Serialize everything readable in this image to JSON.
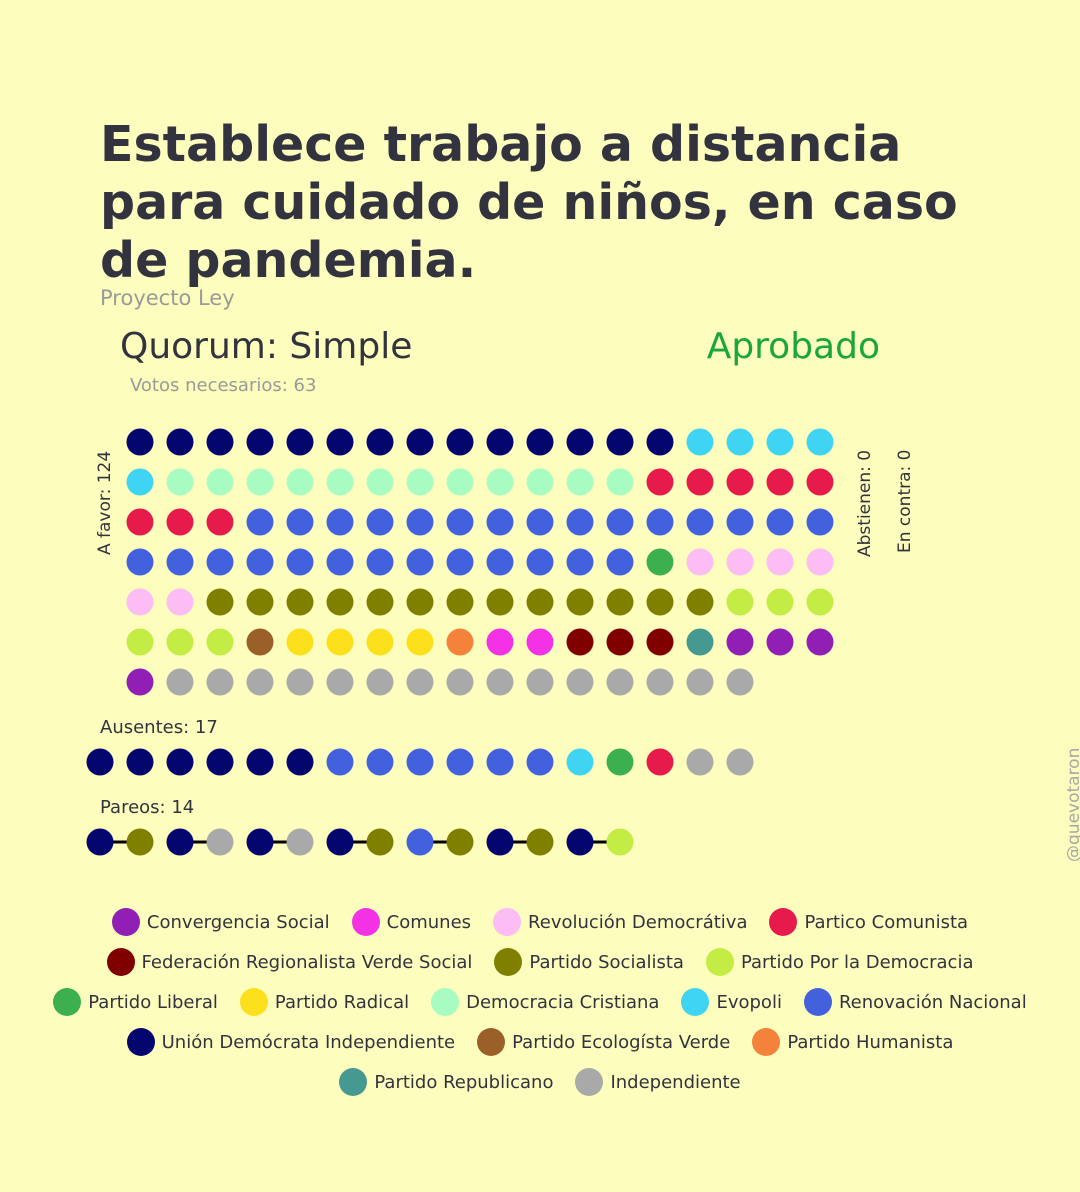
{
  "header": {
    "title": "Establece trabajo a distancia para cuidado de niños, en caso de pandemia.",
    "subtitle": "Proyecto Ley",
    "quorum": "Quorum: Simple",
    "result": "Aprobado",
    "result_color": "#1aa63c",
    "votes_needed": "Votos necesarios: 63"
  },
  "labels": {
    "favor": "A favor: 124",
    "abstain": "Abstienen: 0",
    "against": "En contra: 0",
    "absent": "Ausentes: 17",
    "pairs": "Pareos: 14",
    "watermark": "@quevotaron"
  },
  "chart_data": {
    "type": "dot-grid",
    "title": "Establece trabajo a distancia para cuidado de niños, en caso de pandemia.",
    "parties": {
      "UDI": {
        "name": "Unión Demócrata Independiente",
        "color": "#05056e"
      },
      "EVO": {
        "name": "Evopoli",
        "color": "#40d4f4"
      },
      "DC": {
        "name": "Democracia Cristiana",
        "color": "#a8fcc2"
      },
      "PC": {
        "name": "Partico Comunista",
        "color": "#e61b4c"
      },
      "RN": {
        "name": "Renovación Nacional",
        "color": "#4361dd"
      },
      "PL": {
        "name": "Partido Liberal",
        "color": "#3cb04f"
      },
      "RD": {
        "name": "Revolución Democrátiva",
        "color": "#fcbcf4"
      },
      "PS": {
        "name": "Partido Socialista",
        "color": "#808000"
      },
      "PPD": {
        "name": "Partido Por la Democracia",
        "color": "#c3ec45"
      },
      "PEV": {
        "name": "Partido Ecologísta Verde",
        "color": "#9b5f28"
      },
      "PR": {
        "name": "Partido Radical",
        "color": "#fce01c"
      },
      "PH": {
        "name": "Partido Humanista",
        "color": "#f5823a"
      },
      "COM": {
        "name": "Comunes",
        "color": "#f232e4"
      },
      "FRVS": {
        "name": "Federación Regionalista Verde Social",
        "color": "#800000"
      },
      "REP": {
        "name": "Partido Republicano",
        "color": "#469990"
      },
      "CS": {
        "name": "Convergencia Social",
        "color": "#911fb5"
      },
      "IND": {
        "name": "Independiente",
        "color": "#a9a9a9"
      }
    },
    "groups": [
      {
        "name": "A favor",
        "count": 124,
        "counts": [
          [
            "UDI",
            14
          ],
          [
            "EVO",
            5
          ],
          [
            "DC",
            12
          ],
          [
            "PC",
            8
          ],
          [
            "RN",
            28
          ],
          [
            "PL",
            1
          ],
          [
            "RD",
            6
          ],
          [
            "PS",
            13
          ],
          [
            "PPD",
            6
          ],
          [
            "PEV",
            1
          ],
          [
            "PR",
            4
          ],
          [
            "PH",
            1
          ],
          [
            "COM",
            2
          ],
          [
            "FRVS",
            3
          ],
          [
            "REP",
            1
          ],
          [
            "CS",
            4
          ],
          [
            "IND",
            15
          ]
        ]
      },
      {
        "name": "Abstienen",
        "count": 0,
        "counts": []
      },
      {
        "name": "En contra",
        "count": 0,
        "counts": []
      },
      {
        "name": "Ausentes",
        "count": 17,
        "members": [
          "UDI",
          "UDI",
          "UDI",
          "UDI",
          "UDI",
          "UDI",
          "RN",
          "RN",
          "RN",
          "RN",
          "RN",
          "RN",
          "EVO",
          "PL",
          "PC",
          "IND",
          "IND"
        ]
      },
      {
        "name": "Pareos",
        "count": 14,
        "pairs": [
          [
            "UDI",
            "PS"
          ],
          [
            "UDI",
            "IND"
          ],
          [
            "UDI",
            "IND"
          ],
          [
            "UDI",
            "PS"
          ],
          [
            "RN",
            "PS"
          ],
          [
            "UDI",
            "PS"
          ],
          [
            "UDI",
            "PPD"
          ]
        ]
      }
    ]
  },
  "legend": [
    [
      "CS",
      "COM",
      "RD",
      "PC"
    ],
    [
      "FRVS",
      "PS",
      "PPD"
    ],
    [
      "PL",
      "PR",
      "DC",
      "EVO",
      "RN"
    ],
    [
      "UDI",
      "PEV",
      "PH"
    ],
    [
      "REP",
      "IND"
    ]
  ]
}
